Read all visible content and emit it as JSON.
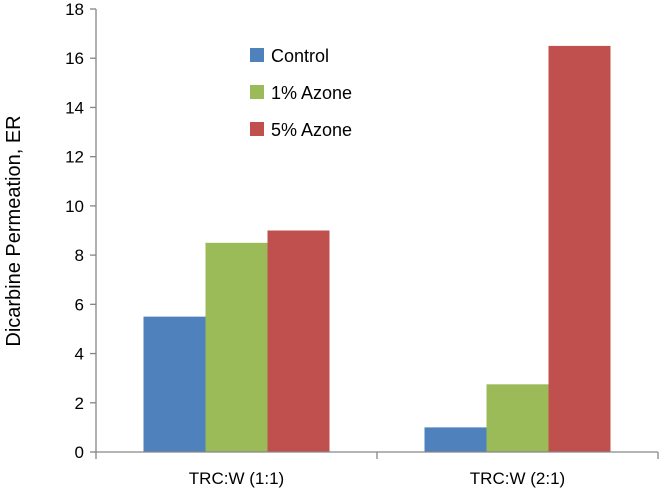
{
  "chart_data": {
    "type": "bar",
    "title": "",
    "xlabel": "",
    "ylabel": "Dicarbine Permeation, ER",
    "ylim": [
      0,
      18
    ],
    "yticks": [
      0,
      2,
      4,
      6,
      8,
      10,
      12,
      14,
      16,
      18
    ],
    "grid": false,
    "legend_position": "top-center",
    "categories": [
      "TRC:W (1:1)",
      "TRC:W (2:1)"
    ],
    "series": [
      {
        "name": "Control",
        "color": "#4f81bd",
        "values": [
          5.5,
          1.0
        ]
      },
      {
        "name": "1% Azone",
        "color": "#9bbb59",
        "values": [
          8.5,
          2.75
        ]
      },
      {
        "name": "5% Azone",
        "color": "#c0504d",
        "values": [
          9.0,
          16.5
        ]
      }
    ]
  }
}
